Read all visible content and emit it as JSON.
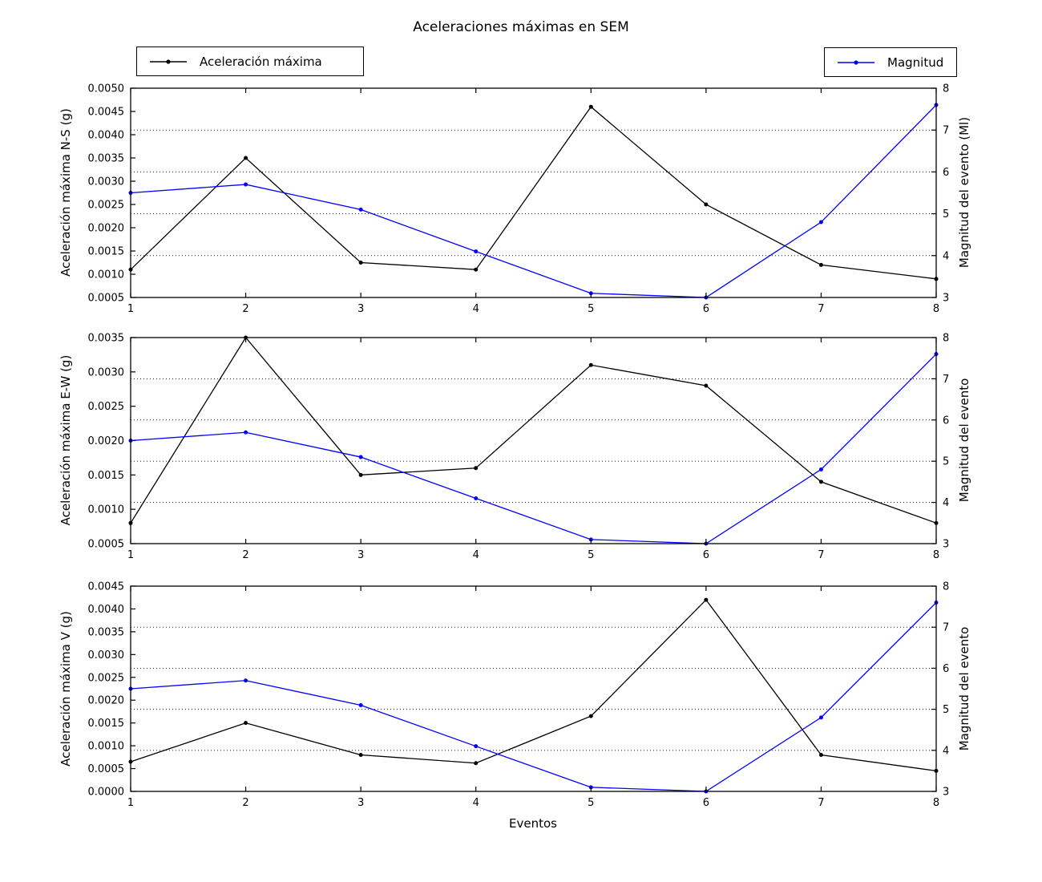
{
  "title": "Aceleraciones máximas en SEM",
  "xlabel": "Eventos",
  "legend": {
    "acceleration": {
      "label": "Aceleración máxima",
      "color": "#000000"
    },
    "magnitude": {
      "label": "Magnitud",
      "color": "#0000ff"
    }
  },
  "chart_data": [
    {
      "id": "ns",
      "type": "line",
      "x": [
        1,
        2,
        3,
        4,
        5,
        6,
        7,
        8
      ],
      "xlim": [
        1,
        8
      ],
      "ylabel_left": "Aceleración máxima N-S (g)",
      "ylabel_right": "Magnitud del evento (Ml)",
      "ylim_left": [
        0.0005,
        0.005
      ],
      "ytick_step_left": 0.0005,
      "ylim_right": [
        3,
        8
      ],
      "yticks_right": [
        3,
        4,
        5,
        6,
        7,
        8
      ],
      "gridlines_right": [
        4,
        5,
        6,
        7
      ],
      "grid_style": "dotted",
      "series": [
        {
          "name": "Aceleración máxima",
          "axis": "left",
          "color": "#000000",
          "values": [
            0.0011,
            0.0035,
            0.00125,
            0.0011,
            0.0046,
            0.0025,
            0.0012,
            0.0009
          ]
        },
        {
          "name": "Magnitud",
          "axis": "right",
          "color": "#0000ff",
          "values": [
            5.5,
            5.7,
            5.1,
            4.1,
            3.1,
            3.0,
            4.8,
            7.6
          ]
        }
      ]
    },
    {
      "id": "ew",
      "type": "line",
      "x": [
        1,
        2,
        3,
        4,
        5,
        6,
        7,
        8
      ],
      "xlim": [
        1,
        8
      ],
      "ylabel_left": "Aceleración máxima E-W (g)",
      "ylabel_right": "Magnitud del evento",
      "ylim_left": [
        0.0005,
        0.0035
      ],
      "ytick_step_left": 0.0005,
      "ylim_right": [
        3,
        8
      ],
      "yticks_right": [
        3,
        4,
        5,
        6,
        7,
        8
      ],
      "gridlines_right": [
        4,
        5,
        6,
        7
      ],
      "grid_style": "dotted",
      "series": [
        {
          "name": "Aceleración máxima",
          "axis": "left",
          "color": "#000000",
          "values": [
            0.0008,
            0.0035,
            0.0015,
            0.0016,
            0.0031,
            0.0028,
            0.0014,
            0.0008
          ]
        },
        {
          "name": "Magnitud",
          "axis": "right",
          "color": "#0000ff",
          "values": [
            5.5,
            5.7,
            5.1,
            4.1,
            3.1,
            3.0,
            4.8,
            7.6
          ]
        }
      ]
    },
    {
      "id": "v",
      "type": "line",
      "x": [
        1,
        2,
        3,
        4,
        5,
        6,
        7,
        8
      ],
      "xlim": [
        1,
        8
      ],
      "ylabel_left": "Aceleración máxima V (g)",
      "ylabel_right": "Magnitud del evento",
      "ylim_left": [
        0.0,
        0.0045
      ],
      "ytick_step_left": 0.0005,
      "ylim_right": [
        3,
        8
      ],
      "yticks_right": [
        3,
        4,
        5,
        6,
        7,
        8
      ],
      "gridlines_right": [
        4,
        5,
        6,
        7
      ],
      "grid_style": "dotted",
      "series": [
        {
          "name": "Aceleración máxima",
          "axis": "left",
          "color": "#000000",
          "values": [
            0.00065,
            0.0015,
            0.0008,
            0.00062,
            0.00165,
            0.0042,
            0.0008,
            0.00045
          ]
        },
        {
          "name": "Magnitud",
          "axis": "right",
          "color": "#0000ff",
          "values": [
            5.5,
            5.7,
            5.1,
            4.1,
            3.1,
            3.0,
            4.8,
            7.6
          ]
        }
      ]
    }
  ]
}
